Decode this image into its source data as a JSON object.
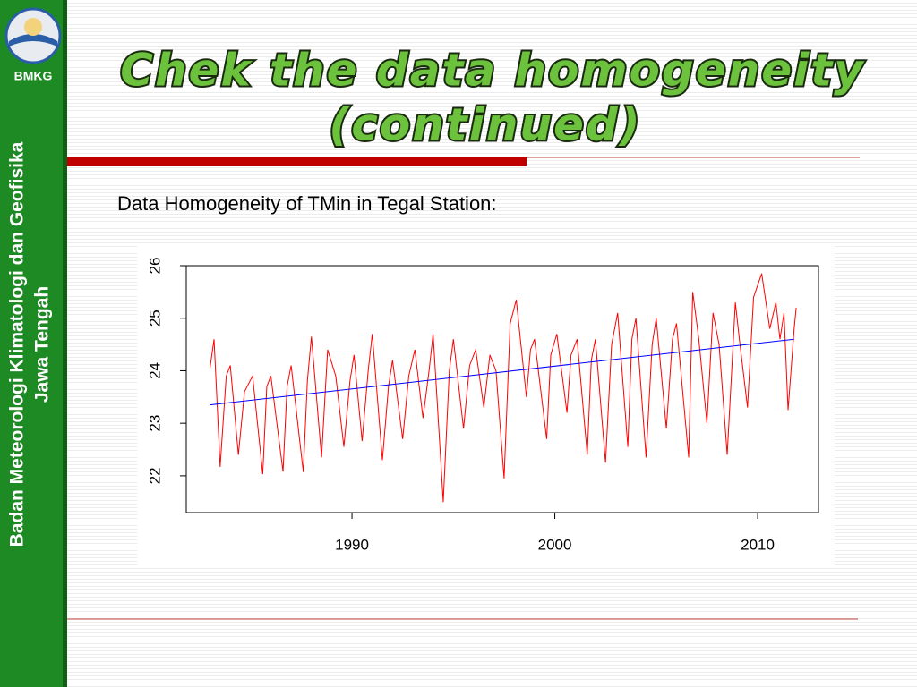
{
  "sidebar": {
    "logo_text": "BMKG",
    "organization": "Badan Meteorologi Klimatologi dan Geofisika",
    "region": "Jawa Tengah"
  },
  "title": [
    "Chek the data homogeneity",
    "(continued)"
  ],
  "subtitle": "Data Homogeneity of TMin in Tegal Station:",
  "chart_data": {
    "type": "line",
    "xlim": [
      1981.83,
      2013.0
    ],
    "xticks": [
      1990,
      2000,
      2010
    ],
    "ylim": [
      21.3,
      26.0
    ],
    "yticks": [
      22,
      23,
      24,
      25,
      26
    ],
    "grid": false,
    "series": [
      {
        "color": "#ff0000",
        "x": [
          1983.0,
          1983.2,
          1983.5,
          1983.8,
          1984.0,
          1984.4,
          1984.7,
          1985.1,
          1985.6,
          1985.8,
          1986.0,
          1986.6,
          1986.8,
          1987.0,
          1987.6,
          1987.8,
          1988.0,
          1988.5,
          1988.8,
          1989.2,
          1989.6,
          1989.9,
          1990.1,
          1990.5,
          1990.8,
          1991.0,
          1991.5,
          1991.8,
          1992.0,
          1992.5,
          1992.8,
          1993.1,
          1993.5,
          1993.8,
          1994.0,
          1994.5,
          1994.8,
          1995.0,
          1995.5,
          1995.8,
          1996.1,
          1996.5,
          1996.8,
          1997.1,
          1997.5,
          1997.8,
          1998.1,
          1998.6,
          1998.8,
          1999.0,
          1999.6,
          1999.8,
          2000.1,
          2000.6,
          2000.8,
          2001.1,
          2001.6,
          2001.8,
          2002.0,
          2002.5,
          2002.8,
          2003.1,
          2003.6,
          2003.8,
          2004.0,
          2004.5,
          2004.8,
          2005.0,
          2005.5,
          2005.8,
          2006.0,
          2006.6,
          2006.8,
          2007.1,
          2007.5,
          2007.8,
          2008.1,
          2008.5,
          2008.9,
          2009.1,
          2009.5,
          2009.8,
          2010.2,
          2010.6,
          2010.9,
          2011.1,
          2011.3,
          2011.5,
          2011.8,
          2011.9
        ],
        "values": [
          24.05,
          24.6,
          22.17,
          23.9,
          24.1,
          22.4,
          23.6,
          23.9,
          22.03,
          23.7,
          23.9,
          22.08,
          23.7,
          24.1,
          22.07,
          23.8,
          24.65,
          22.35,
          24.4,
          23.9,
          22.55,
          23.8,
          24.3,
          22.66,
          24.0,
          24.7,
          22.3,
          23.7,
          24.2,
          22.7,
          23.9,
          24.4,
          23.1,
          24.0,
          24.7,
          21.5,
          24.0,
          24.6,
          22.9,
          24.1,
          24.4,
          23.3,
          24.3,
          24.0,
          21.95,
          24.9,
          25.35,
          23.5,
          24.4,
          24.6,
          22.7,
          24.3,
          24.7,
          23.2,
          24.3,
          24.6,
          22.4,
          24.2,
          24.6,
          22.25,
          24.5,
          25.1,
          22.55,
          24.6,
          25.0,
          22.35,
          24.5,
          25.0,
          22.9,
          24.6,
          24.9,
          22.35,
          25.5,
          24.6,
          23.0,
          25.1,
          24.5,
          22.4,
          25.3,
          24.6,
          23.3,
          25.4,
          25.85,
          24.8,
          25.3,
          24.6,
          25.1,
          23.25,
          24.8,
          25.2
        ]
      },
      {
        "color": "#0000ff",
        "x": [
          1983.0,
          2011.8
        ],
        "values": [
          23.35,
          24.6
        ]
      }
    ]
  }
}
